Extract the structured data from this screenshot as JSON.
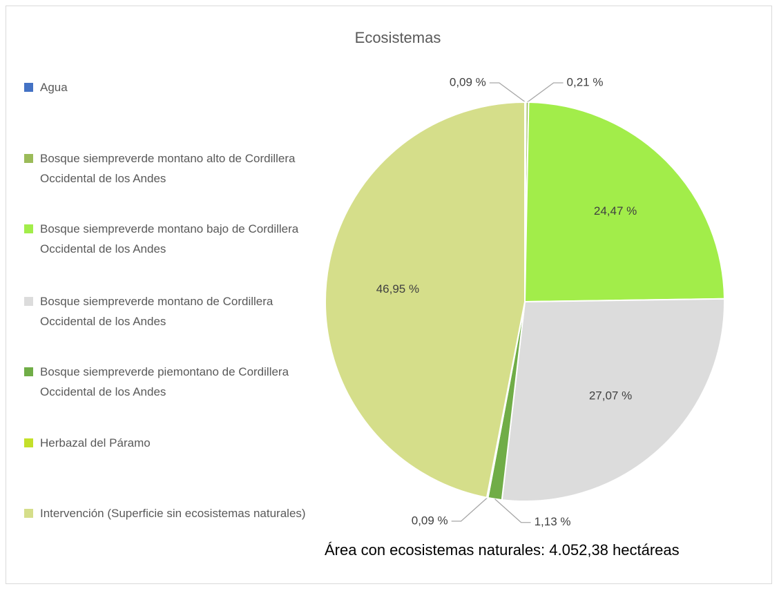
{
  "chart_data": {
    "type": "pie",
    "title": "Ecosistemas",
    "annotation": "Área con ecosistemas naturales: 4.052,38 hectáreas",
    "categories": [
      "Agua",
      "Bosque siempreverde montano alto de Cordillera Occidental de los Andes",
      "Bosque siempreverde montano bajo de Cordillera Occidental de los Andes",
      "Bosque siempreverde montano de Cordillera Occidental de los Andes",
      "Bosque siempreverde piemontano de Cordillera Occidental de los Andes",
      "Herbazal del Páramo",
      "Intervención (Superficie sin ecosistemas naturales)"
    ],
    "values": [
      0.09,
      0.21,
      24.47,
      27.07,
      1.13,
      0.09,
      46.95
    ],
    "value_labels": [
      "0,09 %",
      "0,21 %",
      "24,47 %",
      "27,07 %",
      "1,13 %",
      "0,09 %",
      "46,95 %"
    ],
    "colors": [
      "#4472c4",
      "#9bbb59",
      "#a2ed4a",
      "#dcdcdc",
      "#70ad47",
      "#c4e02a",
      "#d5de8a"
    ],
    "legend": "left"
  }
}
